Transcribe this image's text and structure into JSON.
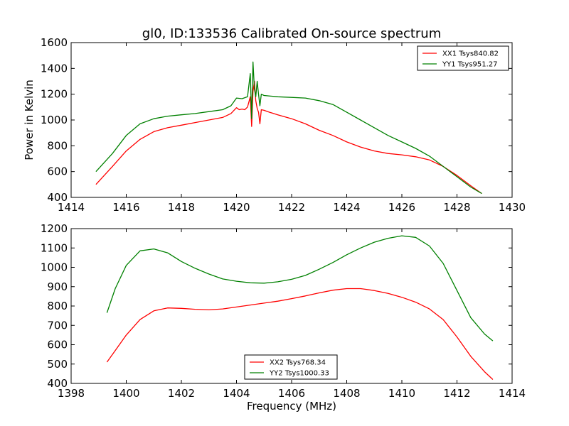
{
  "title": "gl0, ID:133536 Calibrated On-source spectrum",
  "colors": {
    "XX": "#ff0000",
    "YY": "#008000"
  },
  "chart_data": [
    {
      "type": "line",
      "title": "gl0, ID:133536 Calibrated On-source spectrum",
      "xlabel": "",
      "ylabel": "Power in Kelvin",
      "xlim": [
        1414,
        1430
      ],
      "ylim": [
        400,
        1600
      ],
      "xticks": [
        1414,
        1416,
        1418,
        1420,
        1422,
        1424,
        1426,
        1428,
        1430
      ],
      "yticks": [
        400,
        600,
        800,
        1000,
        1200,
        1400,
        1600
      ],
      "legend_position": "top-right",
      "series": [
        {
          "name": "XX1 Tsys840.82",
          "color": "#ff0000",
          "x": [
            1414.9,
            1415.5,
            1416.0,
            1416.5,
            1417.0,
            1417.5,
            1418.0,
            1418.5,
            1419.0,
            1419.5,
            1419.8,
            1420.0,
            1420.1,
            1420.2,
            1420.3,
            1420.4,
            1420.5,
            1420.55,
            1420.6,
            1420.65,
            1420.7,
            1420.75,
            1420.8,
            1420.85,
            1420.9,
            1421.0,
            1421.2,
            1421.5,
            1422.0,
            1422.5,
            1423.0,
            1423.5,
            1424.0,
            1424.5,
            1425.0,
            1425.5,
            1426.0,
            1426.5,
            1427.0,
            1427.5,
            1428.0,
            1428.5,
            1428.9
          ],
          "y": [
            500,
            640,
            760,
            850,
            910,
            940,
            960,
            980,
            1000,
            1020,
            1050,
            1095,
            1080,
            1085,
            1080,
            1100,
            1180,
            950,
            1220,
            1300,
            1150,
            1090,
            1060,
            970,
            1080,
            1075,
            1060,
            1040,
            1010,
            970,
            920,
            880,
            830,
            790,
            760,
            740,
            730,
            715,
            690,
            640,
            570,
            490,
            430
          ]
        },
        {
          "name": "YY1 Tsys951.27",
          "color": "#008000",
          "x": [
            1414.9,
            1415.5,
            1416.0,
            1416.5,
            1417.0,
            1417.5,
            1418.0,
            1418.5,
            1419.0,
            1419.5,
            1419.8,
            1420.0,
            1420.2,
            1420.4,
            1420.5,
            1420.55,
            1420.6,
            1420.65,
            1420.7,
            1420.75,
            1420.8,
            1420.85,
            1420.9,
            1421.0,
            1421.5,
            1422.0,
            1422.5,
            1423.0,
            1423.5,
            1424.0,
            1424.5,
            1425.0,
            1425.5,
            1426.0,
            1426.5,
            1427.0,
            1427.5,
            1428.0,
            1428.5,
            1428.9
          ],
          "y": [
            600,
            740,
            880,
            970,
            1010,
            1030,
            1040,
            1050,
            1065,
            1080,
            1110,
            1170,
            1165,
            1180,
            1360,
            1010,
            1450,
            1240,
            1180,
            1300,
            1200,
            1110,
            1200,
            1190,
            1180,
            1175,
            1170,
            1150,
            1120,
            1060,
            1000,
            940,
            880,
            830,
            780,
            720,
            640,
            560,
            480,
            430
          ]
        }
      ]
    },
    {
      "type": "line",
      "title": "",
      "xlabel": "Frequency (MHz)",
      "ylabel": "",
      "xlim": [
        1398,
        1414
      ],
      "ylim": [
        400,
        1200
      ],
      "xticks": [
        1398,
        1400,
        1402,
        1404,
        1406,
        1408,
        1410,
        1412,
        1414
      ],
      "yticks": [
        400,
        500,
        600,
        700,
        800,
        900,
        1000,
        1100,
        1200
      ],
      "legend_position": "bottom-center",
      "series": [
        {
          "name": "XX2 Tsys768.34",
          "color": "#ff0000",
          "x": [
            1399.3,
            1399.6,
            1400.0,
            1400.5,
            1401.0,
            1401.5,
            1402.0,
            1402.5,
            1403.0,
            1403.5,
            1404.0,
            1404.5,
            1405.0,
            1405.5,
            1406.0,
            1406.5,
            1407.0,
            1407.5,
            1408.0,
            1408.5,
            1409.0,
            1409.5,
            1410.0,
            1410.5,
            1411.0,
            1411.5,
            1412.0,
            1412.5,
            1413.0,
            1413.3
          ],
          "y": [
            510,
            570,
            650,
            730,
            775,
            790,
            788,
            783,
            780,
            785,
            795,
            805,
            815,
            825,
            838,
            852,
            868,
            882,
            890,
            890,
            880,
            865,
            845,
            820,
            785,
            730,
            640,
            540,
            460,
            420
          ]
        },
        {
          "name": "YY2 Tsys1000.33",
          "color": "#008000",
          "x": [
            1399.3,
            1399.6,
            1400.0,
            1400.5,
            1401.0,
            1401.5,
            1402.0,
            1402.5,
            1403.0,
            1403.5,
            1404.0,
            1404.5,
            1405.0,
            1405.5,
            1406.0,
            1406.5,
            1407.0,
            1407.5,
            1408.0,
            1408.5,
            1409.0,
            1409.5,
            1410.0,
            1410.5,
            1411.0,
            1411.5,
            1412.0,
            1412.5,
            1413.0,
            1413.3
          ],
          "y": [
            765,
            890,
            1010,
            1085,
            1095,
            1075,
            1030,
            995,
            965,
            940,
            928,
            920,
            918,
            925,
            938,
            958,
            990,
            1025,
            1065,
            1100,
            1130,
            1150,
            1163,
            1155,
            1110,
            1020,
            880,
            740,
            655,
            620
          ]
        }
      ]
    }
  ]
}
